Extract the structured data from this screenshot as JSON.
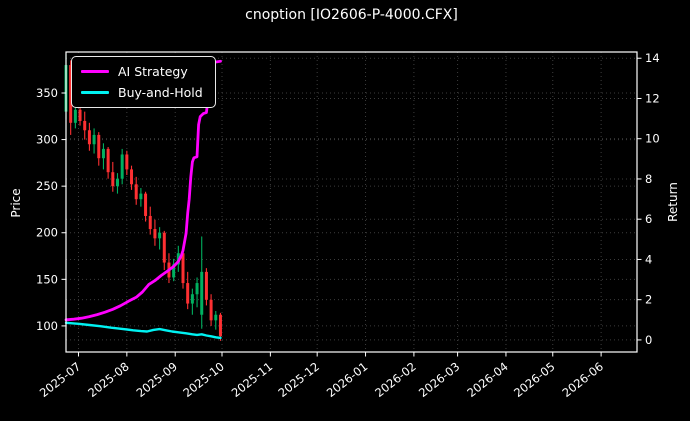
{
  "window": {
    "title": "cnoption [IO2606-P-4000.CFX]"
  },
  "chart_data": {
    "type": "candlestick+line",
    "title": "cnoption [IO2606-P-4000.CFX]",
    "background": "#000000",
    "foreground": "#ffffff",
    "grid": {
      "color": "#3d3d3d",
      "style": "dotted"
    },
    "x_domain": [
      "2025-06-23",
      "2026-06-24"
    ],
    "x_ticks": [
      {
        "date": "2025-07-01",
        "label": "2025-07"
      },
      {
        "date": "2025-08-01",
        "label": "2025-08"
      },
      {
        "date": "2025-09-01",
        "label": "2025-09"
      },
      {
        "date": "2025-10-01",
        "label": "2025-10"
      },
      {
        "date": "2025-11-01",
        "label": "2025-11"
      },
      {
        "date": "2025-12-01",
        "label": "2025-12"
      },
      {
        "date": "2026-01-01",
        "label": "2026-01"
      },
      {
        "date": "2026-02-01",
        "label": "2026-02"
      },
      {
        "date": "2026-03-01",
        "label": "2026-03"
      },
      {
        "date": "2026-04-01",
        "label": "2026-04"
      },
      {
        "date": "2026-05-01",
        "label": "2026-05"
      },
      {
        "date": "2026-06-01",
        "label": "2026-06"
      }
    ],
    "price_axis": {
      "label": "Price",
      "range": [
        72,
        394
      ],
      "ticks": [
        100,
        150,
        200,
        250,
        300,
        350
      ]
    },
    "return_axis": {
      "label": "Return",
      "range": [
        -0.6,
        14.31
      ],
      "ticks": [
        0,
        2,
        4,
        6,
        8,
        10,
        12,
        14
      ]
    },
    "candles": {
      "up_color": "#00b060",
      "down_color": "#fe3032",
      "columns": [
        "date",
        "open",
        "high",
        "low",
        "close"
      ],
      "data": [
        [
          "2025-06-23",
          330,
          392,
          322,
          380
        ],
        [
          "2025-06-26",
          380,
          385,
          305,
          318
        ],
        [
          "2025-06-29",
          318,
          338,
          312,
          332
        ],
        [
          "2025-07-02",
          332,
          340,
          315,
          320
        ],
        [
          "2025-07-05",
          320,
          330,
          300,
          310
        ],
        [
          "2025-07-08",
          310,
          318,
          288,
          295
        ],
        [
          "2025-07-11",
          295,
          312,
          285,
          305
        ],
        [
          "2025-07-14",
          305,
          308,
          272,
          280
        ],
        [
          "2025-07-17",
          280,
          296,
          268,
          290
        ],
        [
          "2025-07-20",
          290,
          292,
          258,
          265
        ],
        [
          "2025-07-23",
          265,
          276,
          244,
          250
        ],
        [
          "2025-07-26",
          250,
          264,
          242,
          258
        ],
        [
          "2025-07-29",
          258,
          290,
          252,
          284
        ],
        [
          "2025-08-01",
          284,
          288,
          262,
          268
        ],
        [
          "2025-08-04",
          268,
          272,
          246,
          252
        ],
        [
          "2025-08-07",
          252,
          260,
          230,
          236
        ],
        [
          "2025-08-10",
          236,
          248,
          228,
          242
        ],
        [
          "2025-08-13",
          242,
          244,
          212,
          218
        ],
        [
          "2025-08-16",
          218,
          228,
          198,
          204
        ],
        [
          "2025-08-19",
          204,
          214,
          186,
          194
        ],
        [
          "2025-08-22",
          194,
          206,
          182,
          200
        ],
        [
          "2025-08-25",
          200,
          202,
          160,
          168
        ],
        [
          "2025-08-28",
          168,
          178,
          146,
          152
        ],
        [
          "2025-08-31",
          152,
          172,
          148,
          166
        ],
        [
          "2025-09-03",
          166,
          186,
          158,
          178
        ],
        [
          "2025-09-06",
          178,
          180,
          140,
          146
        ],
        [
          "2025-09-09",
          146,
          158,
          118,
          124
        ],
        [
          "2025-09-12",
          124,
          140,
          112,
          134
        ],
        [
          "2025-09-15",
          134,
          152,
          120,
          146
        ],
        [
          "2025-09-18",
          112,
          196,
          97,
          158
        ],
        [
          "2025-09-21",
          158,
          162,
          122,
          128
        ],
        [
          "2025-09-24",
          128,
          134,
          100,
          106
        ],
        [
          "2025-09-27",
          106,
          116,
          96,
          112
        ],
        [
          "2025-09-30",
          112,
          114,
          84,
          89
        ]
      ]
    },
    "series": [
      {
        "name": "AI Strategy",
        "color": "#ff00ff",
        "axis": "return",
        "width": 2.8,
        "points": [
          [
            "2025-06-23",
            1.0
          ],
          [
            "2025-06-28",
            1.03
          ],
          [
            "2025-07-03",
            1.08
          ],
          [
            "2025-07-08",
            1.16
          ],
          [
            "2025-07-13",
            1.26
          ],
          [
            "2025-07-18",
            1.38
          ],
          [
            "2025-07-23",
            1.52
          ],
          [
            "2025-07-28",
            1.7
          ],
          [
            "2025-08-02",
            1.92
          ],
          [
            "2025-08-07",
            2.12
          ],
          [
            "2025-08-11",
            2.38
          ],
          [
            "2025-08-15",
            2.75
          ],
          [
            "2025-08-19",
            2.95
          ],
          [
            "2025-08-23",
            3.2
          ],
          [
            "2025-08-27",
            3.42
          ],
          [
            "2025-08-31",
            3.65
          ],
          [
            "2025-09-03",
            3.9
          ],
          [
            "2025-09-05",
            4.2
          ],
          [
            "2025-09-06",
            4.45
          ],
          [
            "2025-09-08",
            5.3
          ],
          [
            "2025-09-09",
            6.3
          ],
          [
            "2025-09-10",
            7.0
          ],
          [
            "2025-09-11",
            8.1
          ],
          [
            "2025-09-12",
            8.85
          ],
          [
            "2025-09-13",
            9.05
          ],
          [
            "2025-09-15",
            9.1
          ],
          [
            "2025-09-16",
            10.7
          ],
          [
            "2025-09-17",
            11.1
          ],
          [
            "2025-09-19",
            11.25
          ],
          [
            "2025-09-21",
            11.3
          ],
          [
            "2025-09-22",
            11.95
          ],
          [
            "2025-09-23",
            13.2
          ],
          [
            "2025-09-24",
            13.78
          ],
          [
            "2025-09-30",
            13.85
          ]
        ]
      },
      {
        "name": "Buy-and-Hold",
        "color": "#00f2f2",
        "axis": "return",
        "width": 2.4,
        "points": [
          [
            "2025-06-23",
            0.85
          ],
          [
            "2025-07-01",
            0.8
          ],
          [
            "2025-07-08",
            0.74
          ],
          [
            "2025-07-15",
            0.68
          ],
          [
            "2025-07-22",
            0.61
          ],
          [
            "2025-07-29",
            0.55
          ],
          [
            "2025-08-05",
            0.48
          ],
          [
            "2025-08-10",
            0.44
          ],
          [
            "2025-08-14",
            0.42
          ],
          [
            "2025-08-18",
            0.5
          ],
          [
            "2025-08-22",
            0.54
          ],
          [
            "2025-08-26",
            0.48
          ],
          [
            "2025-08-30",
            0.42
          ],
          [
            "2025-09-03",
            0.38
          ],
          [
            "2025-09-08",
            0.33
          ],
          [
            "2025-09-12",
            0.28
          ],
          [
            "2025-09-15",
            0.25
          ],
          [
            "2025-09-18",
            0.28
          ],
          [
            "2025-09-21",
            0.22
          ],
          [
            "2025-09-24",
            0.18
          ],
          [
            "2025-09-27",
            0.13
          ],
          [
            "2025-09-30",
            0.1
          ]
        ]
      }
    ],
    "legend": {
      "position": "upper-left"
    }
  }
}
